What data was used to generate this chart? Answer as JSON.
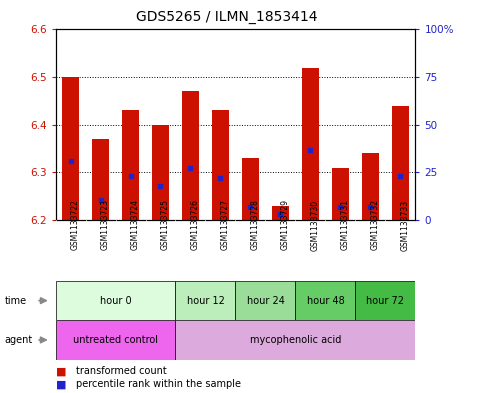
{
  "title": "GDS5265 / ILMN_1853414",
  "samples": [
    "GSM1133722",
    "GSM1133723",
    "GSM1133724",
    "GSM1133725",
    "GSM1133726",
    "GSM1133727",
    "GSM1133728",
    "GSM1133729",
    "GSM1133730",
    "GSM1133731",
    "GSM1133732",
    "GSM1133733"
  ],
  "bar_bottom": 6.2,
  "transformed_counts": [
    6.5,
    6.37,
    6.43,
    6.4,
    6.47,
    6.43,
    6.33,
    6.23,
    6.52,
    6.31,
    6.34,
    6.44
  ],
  "percentile_values": [
    6.325,
    6.243,
    6.293,
    6.272,
    6.31,
    6.288,
    6.228,
    6.213,
    6.348,
    6.227,
    6.228,
    6.293
  ],
  "ylim": [
    6.2,
    6.6
  ],
  "yticks_left": [
    6.2,
    6.3,
    6.4,
    6.5,
    6.6
  ],
  "yticks_right": [
    0,
    25,
    50,
    75,
    100
  ],
  "bar_color": "#cc1100",
  "percentile_color": "#2222cc",
  "grid_color": "#000000",
  "time_groups": [
    {
      "label": "hour 0",
      "start": 0,
      "end": 4,
      "color": "#ddfcdd"
    },
    {
      "label": "hour 12",
      "start": 4,
      "end": 6,
      "color": "#bbeebb"
    },
    {
      "label": "hour 24",
      "start": 6,
      "end": 8,
      "color": "#99dd99"
    },
    {
      "label": "hour 48",
      "start": 8,
      "end": 10,
      "color": "#66cc66"
    },
    {
      "label": "hour 72",
      "start": 10,
      "end": 12,
      "color": "#44bb44"
    }
  ],
  "agent_groups": [
    {
      "label": "untreated control",
      "start": 0,
      "end": 4,
      "color": "#ee66ee"
    },
    {
      "label": "mycophenolic acid",
      "start": 4,
      "end": 12,
      "color": "#ddaadd"
    }
  ],
  "legend_items": [
    {
      "label": "transformed count",
      "color": "#cc1100"
    },
    {
      "label": "percentile rank within the sample",
      "color": "#2222cc"
    }
  ],
  "bar_width": 0.55,
  "ylabel_left_color": "#cc1100",
  "ylabel_right_color": "#2222cc",
  "title_fontsize": 10,
  "tick_fontsize": 7.5,
  "sample_fontsize": 5.5,
  "row_fontsize": 7,
  "legend_fontsize": 7,
  "background_color": "#ffffff",
  "plot_bg_color": "#ffffff",
  "sample_bg_color": "#cccccc",
  "border_color": "#000000"
}
